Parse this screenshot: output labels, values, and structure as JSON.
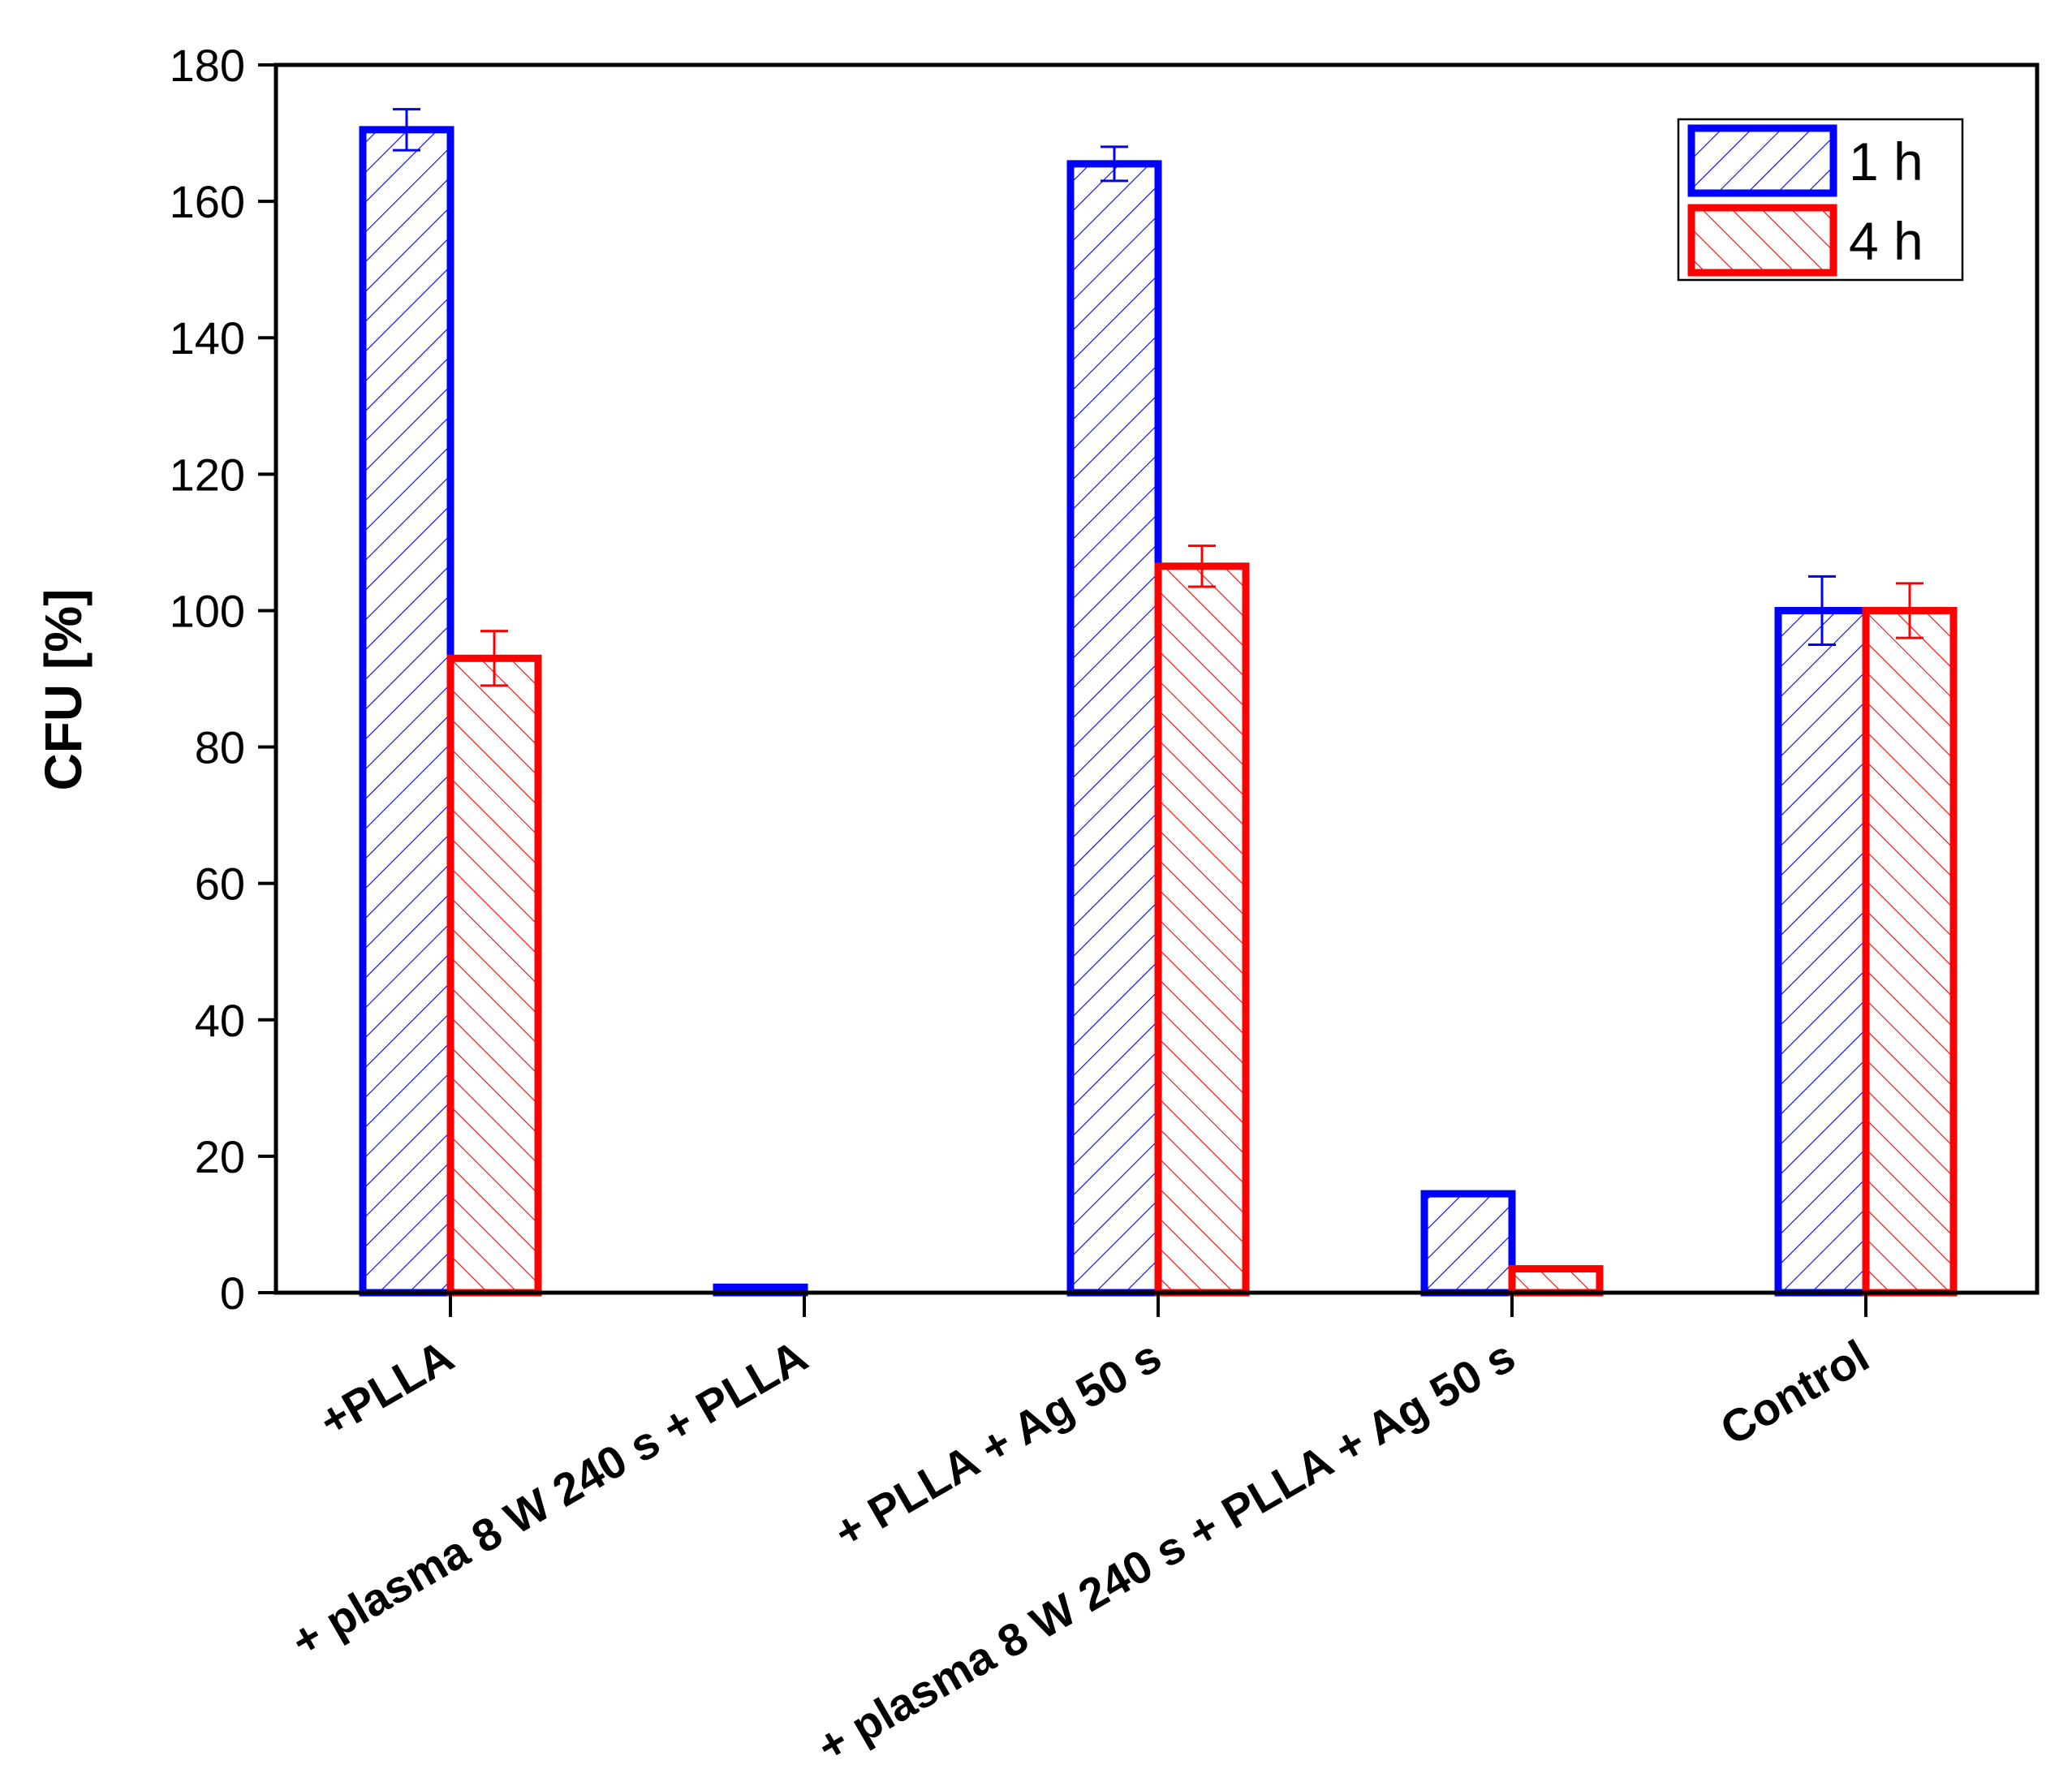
{
  "chart_data": {
    "type": "bar",
    "title": "",
    "xlabel": "",
    "ylabel": "CFU [%]",
    "ylim": [
      0,
      180
    ],
    "yticks": [
      0,
      20,
      40,
      60,
      80,
      100,
      120,
      140,
      160,
      180
    ],
    "ytick_labels": [
      "0",
      "20",
      "40",
      "60",
      "80",
      "100",
      "120",
      "140",
      "160",
      "180"
    ],
    "categories": [
      "+PLLA",
      "+ plasma 8 W 240 s + PLLA",
      "+ PLLA + Ag 50 s",
      "+ plasma 8 W 240 s + PLLA + Ag 50 s",
      "Control"
    ],
    "series": [
      {
        "name": "1 h",
        "color": "#0000ff",
        "values": [
          170.5,
          0.8,
          165.5,
          14.5,
          100
        ],
        "errors": [
          3,
          null,
          2.5,
          null,
          5
        ]
      },
      {
        "name": "4 h",
        "color": "#ff0000",
        "values": [
          93,
          0,
          106.5,
          3.5,
          100
        ],
        "errors": [
          4,
          null,
          3,
          null,
          4
        ]
      }
    ],
    "legend": {
      "position": "top-right",
      "entries": [
        "1 h",
        "4 h"
      ]
    },
    "grid": false,
    "hatch": "diagonal"
  }
}
